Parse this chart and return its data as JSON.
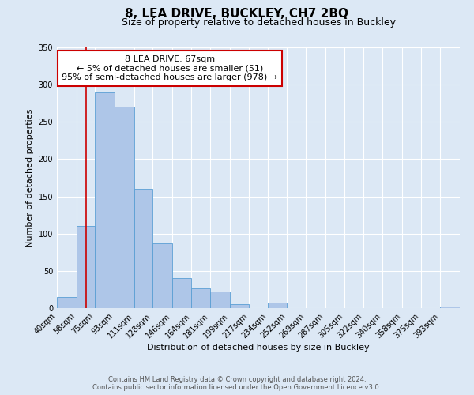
{
  "title": "8, LEA DRIVE, BUCKLEY, CH7 2BQ",
  "subtitle": "Size of property relative to detached houses in Buckley",
  "xlabel": "Distribution of detached houses by size in Buckley",
  "ylabel": "Number of detached properties",
  "bar_edges": [
    40,
    58,
    75,
    93,
    111,
    128,
    146,
    164,
    181,
    199,
    217,
    234,
    252,
    269,
    287,
    305,
    322,
    340,
    358,
    375,
    393
  ],
  "bar_heights": [
    15,
    110,
    290,
    270,
    160,
    87,
    40,
    27,
    22,
    5,
    0,
    7,
    0,
    0,
    0,
    0,
    0,
    0,
    0,
    0,
    2
  ],
  "bar_color": "#aec6e8",
  "bar_edge_color": "#5a9fd4",
  "vline_x": 67,
  "vline_color": "#cc0000",
  "ylim": [
    0,
    350
  ],
  "yticks": [
    0,
    50,
    100,
    150,
    200,
    250,
    300,
    350
  ],
  "annotation_title": "8 LEA DRIVE: 67sqm",
  "annotation_line1": "← 5% of detached houses are smaller (51)",
  "annotation_line2": "95% of semi-detached houses are larger (978) →",
  "annotation_box_color": "#ffffff",
  "annotation_box_edge_color": "#cc0000",
  "footer_line1": "Contains HM Land Registry data © Crown copyright and database right 2024.",
  "footer_line2": "Contains public sector information licensed under the Open Government Licence v3.0.",
  "background_color": "#dce8f5",
  "plot_bg_color": "#dce8f5",
  "grid_color": "#ffffff",
  "title_fontsize": 11,
  "subtitle_fontsize": 9,
  "axis_label_fontsize": 8,
  "tick_label_fontsize": 7,
  "footer_fontsize": 6,
  "annotation_fontsize": 8
}
